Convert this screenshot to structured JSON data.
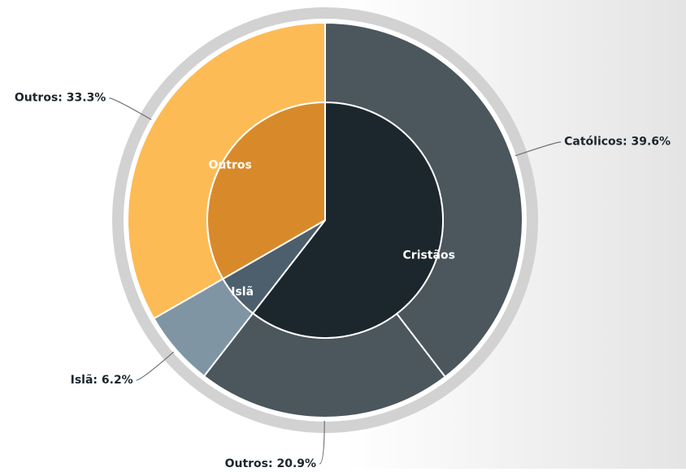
{
  "chart_data": {
    "type": "sunburst",
    "groups": [
      {
        "name": "Cristãos",
        "color": "#1c262d",
        "children": [
          {
            "label": "Católicos: 39.6%",
            "value": 39.6,
            "color": "#4b565d"
          },
          {
            "label": "Outros: 20.9%",
            "value": 20.9,
            "color": "#4b565d"
          }
        ]
      },
      {
        "name": "Islã",
        "color": "#4d5f6c",
        "children": [
          {
            "label": "Islã: 6.2%",
            "value": 6.2,
            "color": "#7f95a3"
          }
        ]
      },
      {
        "name": "Outros",
        "color": "#d88a2a",
        "children": [
          {
            "label": "Outros: 33.3%",
            "value": 33.3,
            "color": "#fdbb56"
          }
        ]
      }
    ]
  }
}
